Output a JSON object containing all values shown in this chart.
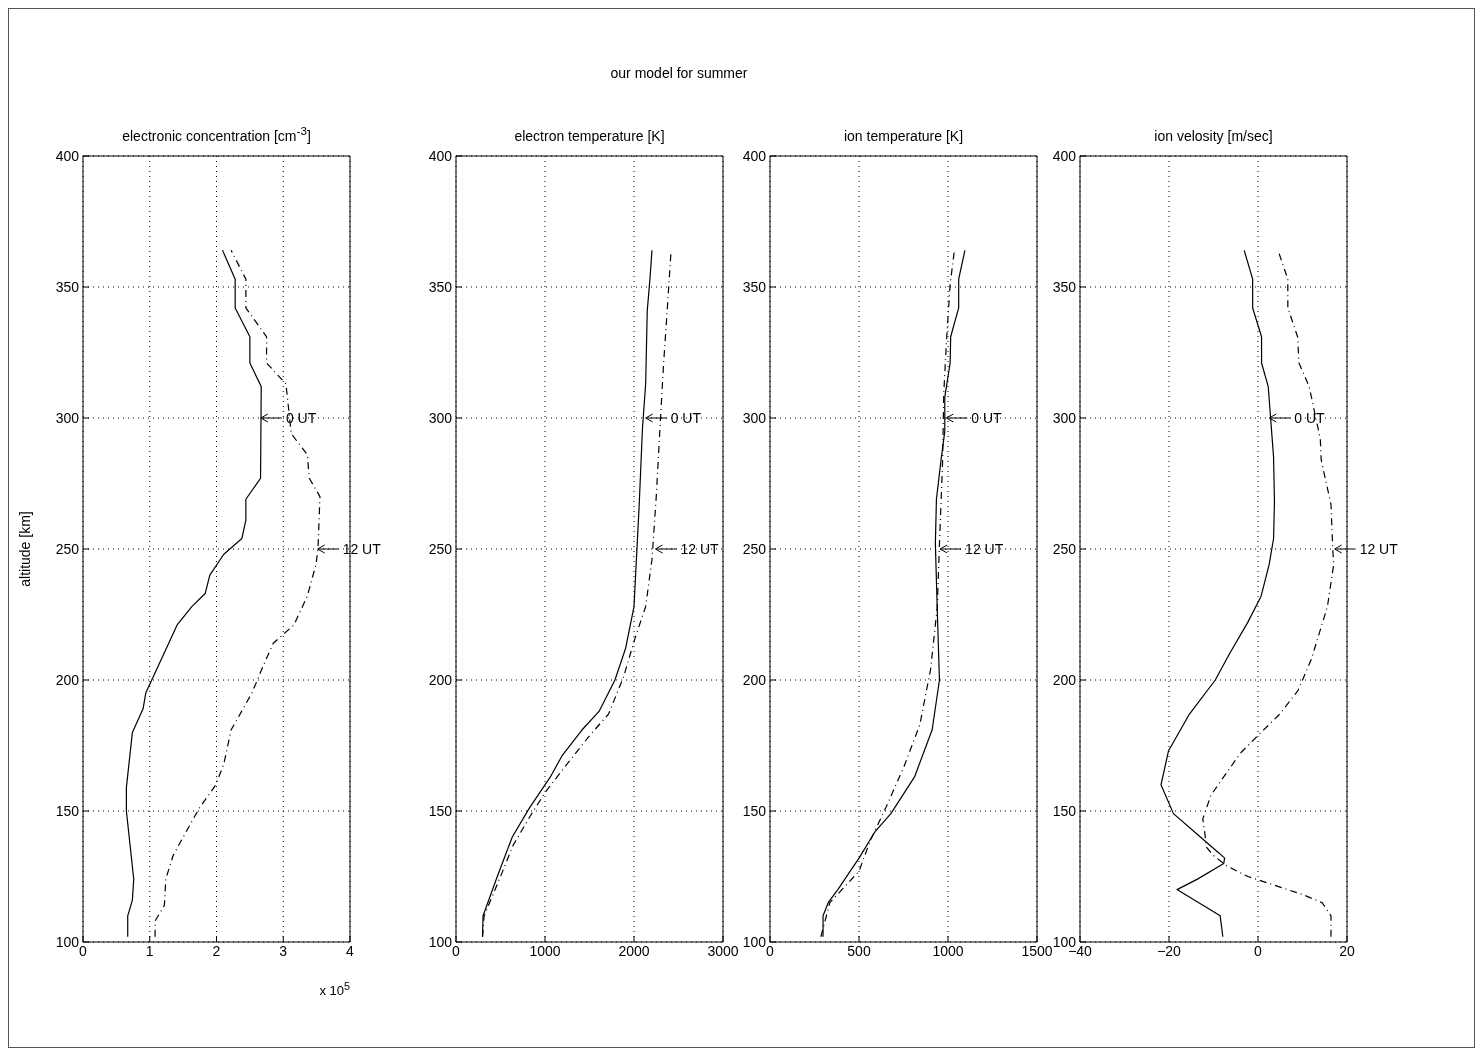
{
  "chart_data": [
    {
      "type": "line",
      "title": "electronic concentration [cm$^{-3}$]",
      "xlabel": "x 10$^{5}$",
      "ylabel": "altitude [km]",
      "annotations": [
        "our model for summer",
        {
          "text": "0 UT",
          "x": 2.65,
          "y": 300
        },
        {
          "text": "12 UT",
          "x": 3.5,
          "y": 250
        }
      ],
      "xlim": [
        0,
        4
      ],
      "xticks": [
        0,
        1,
        2,
        3,
        4
      ],
      "ylim": [
        100,
        400
      ],
      "yticks": [
        100,
        150,
        200,
        250,
        300,
        350,
        400
      ],
      "grid": true,
      "marker": "none",
      "series": [
        {
          "color": "#000000",
          "line_style": "solid",
          "x": [
            0.67,
            0.67,
            0.74,
            0.76,
            0.65,
            0.65,
            0.74,
            0.9,
            0.94,
            1.12,
            1.41,
            1.63,
            1.83,
            1.9,
            2.11,
            2.38,
            2.44,
            2.44,
            2.66,
            2.67,
            2.5,
            2.5,
            2.28,
            2.28,
            2.09
          ],
          "values": [
            102,
            110,
            116,
            124,
            150,
            159,
            180,
            189,
            195,
            205,
            221,
            228,
            233,
            240,
            248,
            254,
            261,
            269,
            277,
            312,
            321,
            331,
            342,
            353,
            364
          ]
        },
        {
          "color": "#000000",
          "line_style": "dashed",
          "x": [
            1.08,
            1.08,
            1.22,
            1.24,
            1.35,
            1.5,
            1.74,
            1.99,
            2.11,
            2.22,
            2.53,
            2.71,
            2.85,
            3.16,
            3.36,
            3.49,
            3.52,
            3.55,
            3.39,
            3.36,
            3.12,
            3.07,
            3.04,
            2.75,
            2.75,
            2.44,
            2.44,
            2.22
          ],
          "values": [
            102,
            108,
            114,
            124,
            133,
            140,
            151,
            160,
            168,
            181,
            195,
            206,
            214,
            221,
            232,
            244,
            250,
            270,
            277,
            286,
            294,
            306,
            313,
            321,
            331,
            342,
            353,
            364
          ]
        }
      ]
    },
    {
      "type": "line",
      "title": "electron temperature [K]",
      "annotations": [
        {
          "text": "0 UT",
          "x": 2120,
          "y": 300
        },
        {
          "text": "12 UT",
          "x": 2230,
          "y": 250
        }
      ],
      "xlim": [
        0,
        3000
      ],
      "xticks": [
        0,
        1000,
        2000,
        3000
      ],
      "ylim": [
        100,
        400
      ],
      "yticks": [
        100,
        150,
        200,
        250,
        300,
        350,
        400
      ],
      "grid": true,
      "marker": "none",
      "series": [
        {
          "color": "#000000",
          "line_style": "solid",
          "x": [
            298,
            304,
            464,
            631,
            822,
            1060,
            1190,
            1417,
            1607,
            1786,
            1905,
            2000,
            2024,
            2060,
            2095,
            2131,
            2149,
            2179,
            2202
          ],
          "values": [
            102,
            110,
            125,
            140,
            151,
            163,
            171,
            181,
            188,
            200,
            212,
            228,
            244,
            268,
            296,
            313,
            341,
            353,
            364
          ]
        },
        {
          "color": "#000000",
          "line_style": "dashed",
          "x": [
            298,
            316,
            500,
            643,
            833,
            1000,
            1226,
            1506,
            1714,
            1881,
            2012,
            2131,
            2202,
            2250,
            2298,
            2333,
            2369,
            2417
          ],
          "values": [
            102,
            110,
            125,
            137,
            148,
            157,
            167,
            179,
            187,
            201,
            216,
            228,
            246,
            270,
            300,
            321,
            339,
            364
          ]
        }
      ]
    },
    {
      "type": "line",
      "title": "ion temperature [K]",
      "annotations": [
        {
          "text": "0 UT",
          "x": 985,
          "y": 300
        },
        {
          "text": "12 UT",
          "x": 950,
          "y": 250
        }
      ],
      "xlim": [
        0,
        1500
      ],
      "xticks": [
        0,
        500,
        1000,
        1500
      ],
      "ylim": [
        100,
        400
      ],
      "yticks": [
        100,
        150,
        200,
        250,
        300,
        350,
        400
      ],
      "grid": true,
      "marker": "none",
      "series": [
        {
          "color": "#000000",
          "line_style": "solid",
          "x": [
            298,
            298,
            327,
            381,
            500,
            589,
            679,
            812,
            911,
            952,
            940,
            929,
            935,
            961,
            982,
            982,
            1012,
            1015,
            1060,
            1060,
            1095
          ],
          "values": [
            102,
            110,
            115,
            120,
            132,
            142,
            149,
            163,
            181,
            200,
            226,
            252,
            269,
            284,
            295,
            308,
            321,
            331,
            342,
            353,
            364
          ]
        },
        {
          "color": "#000000",
          "line_style": "dashed",
          "x": [
            286,
            336,
            500,
            565,
            649,
            753,
            842,
            902,
            940,
            952,
            970,
            976,
            991,
            1012,
            1036
          ],
          "values": [
            102,
            115,
            127,
            139,
            151,
            167,
            183,
            204,
            228,
            252,
            284,
            309,
            329,
            351,
            364
          ]
        }
      ]
    },
    {
      "type": "line",
      "title": "ion velosity [m/sec]",
      "annotations": [
        {
          "text": "0 UT",
          "x": 2.3,
          "y": 300
        },
        {
          "text": "12 UT",
          "x": 17,
          "y": 250
        }
      ],
      "xlim": [
        -40,
        20
      ],
      "xticks": [
        -40,
        -20,
        0,
        20
      ],
      "ylim": [
        100,
        400
      ],
      "yticks": [
        100,
        150,
        200,
        250,
        300,
        350,
        400
      ],
      "grid": true,
      "marker": "none",
      "series": [
        {
          "color": "#000000",
          "line_style": "solid",
          "x": [
            -7.9,
            -8.5,
            -18.2,
            -13.6,
            -7.7,
            -7.5,
            -8.8,
            -13.6,
            -19,
            -21.8,
            -20.1,
            -15.4,
            -9.6,
            -6.4,
            -2.3,
            0.7,
            2.5,
            3.5,
            3.7,
            3.5,
            2.3,
            0.8,
            0.8,
            -1.2,
            -1.2,
            -3.1
          ],
          "values": [
            102,
            110,
            120,
            124,
            130,
            132,
            134,
            141,
            149,
            160,
            173,
            187,
            200,
            210,
            222,
            232,
            244,
            254,
            268,
            285,
            312,
            321,
            331,
            342,
            353,
            364
          ]
        },
        {
          "color": "#000000",
          "line_style": "dashed",
          "x": [
            16.4,
            16.4,
            14.4,
            10.2,
            3.1,
            -2.3,
            -7,
            -10,
            -11.5,
            -12.4,
            -10.6,
            -4,
            0.1,
            4.9,
            9,
            12,
            15.6,
            17,
            16.8,
            16.4,
            14.2,
            14,
            11.5,
            9.2,
            8.9,
            6.7,
            6.7,
            4.5
          ],
          "values": [
            102,
            110,
            115,
            118,
            122,
            125,
            129,
            133,
            136,
            147,
            156,
            172,
            179,
            187,
            196,
            208,
            228,
            244,
            250,
            267,
            284,
            292,
            312,
            321,
            331,
            342,
            353,
            364
          ]
        }
      ]
    }
  ]
}
